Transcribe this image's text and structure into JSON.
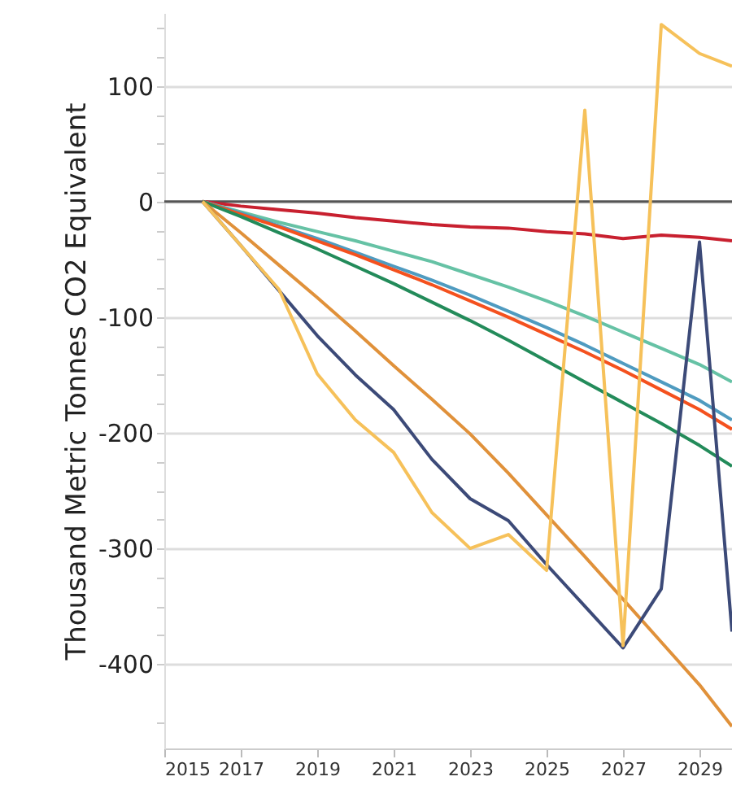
{
  "chart_data": {
    "type": "line",
    "ylabel": "Thousand Metric Tonnes CO2 Equivalent",
    "x": [
      2016,
      2017,
      2018,
      2019,
      2020,
      2021,
      2022,
      2023,
      2024,
      2025,
      2026,
      2027,
      2028,
      2029,
      2029.85
    ],
    "xlim": [
      2015,
      2029.85
    ],
    "xticks": [
      2015,
      2017,
      2019,
      2021,
      2023,
      2025,
      2027,
      2029
    ],
    "ylim": [
      -473,
      163
    ],
    "yticks": [
      {
        "value": -450,
        "label": null
      },
      -400,
      {
        "value": -375,
        "label": null
      },
      {
        "value": -350,
        "label": null
      },
      {
        "value": -325,
        "label": null
      },
      -300,
      {
        "value": -275,
        "label": null
      },
      {
        "value": -250,
        "label": null
      },
      {
        "value": -225,
        "label": null
      },
      -200,
      {
        "value": -175,
        "label": null
      },
      {
        "value": -150,
        "label": null
      },
      {
        "value": -125,
        "label": null
      },
      -100,
      {
        "value": -75,
        "label": null
      },
      {
        "value": -50,
        "label": null
      },
      {
        "value": -25,
        "label": null
      },
      0,
      {
        "value": 25,
        "label": null
      },
      {
        "value": 50,
        "label": null
      },
      {
        "value": 75,
        "label": null
      },
      100,
      {
        "value": 125,
        "label": null
      },
      {
        "value": 150,
        "label": null
      }
    ],
    "grid": "y",
    "line_style": "solid",
    "marker": "none",
    "ref_lines": [
      {
        "axis": "y",
        "value": 0,
        "color": "#555555"
      }
    ],
    "series": [
      {
        "color": "#c8202f",
        "values": [
          0,
          -4,
          -7,
          -10,
          -14,
          -17,
          -20,
          -22,
          -23,
          -26,
          -28,
          -32,
          -29,
          -31,
          -34
        ]
      },
      {
        "color": "#66c2a5",
        "values": [
          0,
          -9,
          -18,
          -26,
          -34,
          -43,
          -52,
          -63,
          -74,
          -86,
          -99,
          -113,
          -127,
          -141,
          -156
        ]
      },
      {
        "color": "#4f9bc0",
        "values": [
          0,
          -10,
          -21,
          -32,
          -44,
          -56,
          -68,
          -81,
          -95,
          -109,
          -124,
          -140,
          -156,
          -172,
          -189
        ]
      },
      {
        "color": "#f4511e",
        "values": [
          0,
          -11,
          -22,
          -34,
          -46,
          -59,
          -72,
          -86,
          -100,
          -115,
          -130,
          -146,
          -163,
          -180,
          -197
        ]
      },
      {
        "color": "#238b5a",
        "values": [
          0,
          -13,
          -27,
          -41,
          -56,
          -71,
          -87,
          -103,
          -120,
          -138,
          -156,
          -174,
          -192,
          -211,
          -229
        ]
      },
      {
        "color": "#e0913a",
        "values": [
          0,
          -27,
          -55,
          -83,
          -112,
          -142,
          -171,
          -201,
          -235,
          -271,
          -307,
          -344,
          -381,
          -418,
          -454
        ]
      },
      {
        "color": "#3c4a78",
        "values": [
          0,
          -38,
          -77,
          -116,
          -150,
          -180,
          -223,
          -257,
          -276,
          -314,
          -350,
          -386,
          -335,
          -35,
          -372
        ]
      },
      {
        "color": "#f6c15a",
        "values": [
          0,
          -38,
          -76,
          -149,
          -189,
          -217,
          -269,
          -300,
          -288,
          -319,
          79,
          -384,
          153,
          128,
          117
        ]
      }
    ]
  }
}
